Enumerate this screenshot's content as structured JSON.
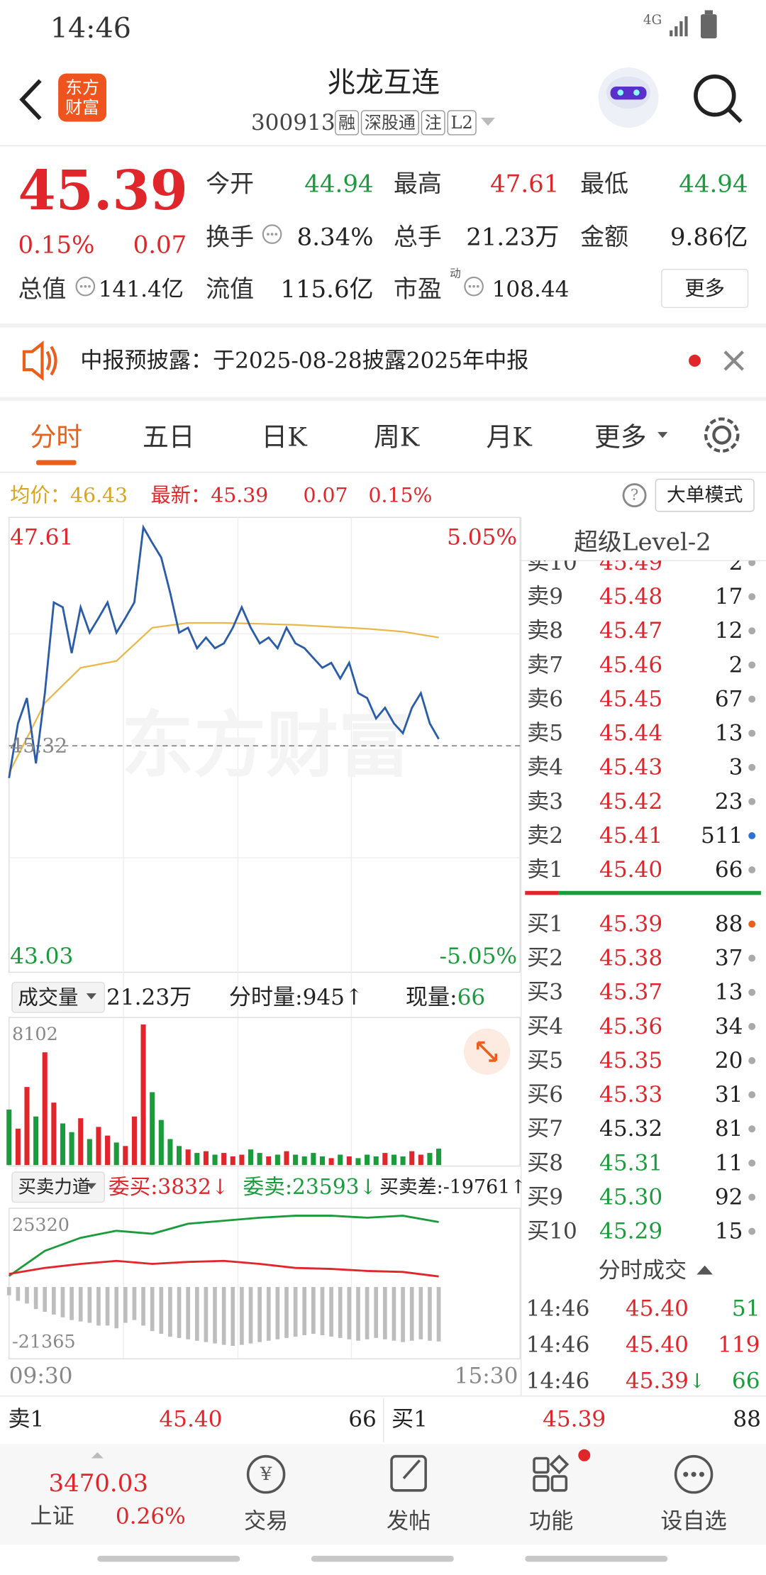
{
  "status_bar": {
    "time": "14:46",
    "network": "4G"
  },
  "header": {
    "logo": [
      "东方",
      "财富"
    ],
    "name": "兆龙互连",
    "code": "300913",
    "tags": [
      "融",
      "深股通",
      "注",
      "L2"
    ]
  },
  "quote": {
    "price": "45.39",
    "change_pct": "0.15%",
    "change": "0.07",
    "pe_note": "动",
    "more": "更多",
    "stats": [
      {
        "label": "今开",
        "value": "44.94",
        "color": "#1a9b3c"
      },
      {
        "label": "最高",
        "value": "47.61",
        "color": "#e0262b"
      },
      {
        "label": "最低",
        "value": "44.94",
        "color": "#1a9b3c"
      },
      {
        "label": "换手",
        "value": "8.34%"
      },
      {
        "label": "总手",
        "value": "21.23万"
      },
      {
        "label": "金额",
        "value": "9.86亿"
      },
      {
        "label": "总值",
        "value": "141.4亿"
      },
      {
        "label": "流值",
        "value": "115.6亿"
      },
      {
        "label": "市盈",
        "value": "108.44"
      }
    ]
  },
  "notice": "中报预披露：于2025-08-28披露2025年中报",
  "tabs": [
    "分时",
    "五日",
    "日K",
    "周K",
    "月K",
    "更多"
  ],
  "summary": {
    "avg": "均价：46.43",
    "latest": "最新：45.39",
    "change": "0.07",
    "pct": "0.15%",
    "mode": "大单模式"
  },
  "intraday": {
    "ylim": [
      43.03,
      47.61
    ],
    "prev_close": 45.32,
    "top_pct": "5.05%",
    "bottom_pct": "-5.05%",
    "watermark": "东方财富",
    "start": "09:30",
    "end": "15:30",
    "price": [
      44.99,
      45.55,
      45.81,
      45.14,
      45.86,
      46.79,
      46.74,
      46.27,
      46.74,
      46.48,
      46.63,
      46.79,
      46.48,
      46.63,
      46.79,
      47.56,
      47.4,
      47.25,
      46.89,
      46.48,
      46.53,
      46.32,
      46.43,
      46.32,
      46.37,
      46.53,
      46.74,
      46.53,
      46.37,
      46.43,
      46.32,
      46.53,
      46.37,
      46.32,
      46.22,
      46.12,
      46.17,
      46.01,
      46.17,
      45.86,
      45.81,
      45.6,
      45.71,
      45.55,
      45.45,
      45.71,
      45.86,
      45.55,
      45.39
    ],
    "avg": [
      45.04,
      45.76,
      46.12,
      46.19,
      46.53,
      46.58,
      46.58,
      46.57,
      46.56,
      46.54,
      46.52,
      46.49,
      46.43
    ]
  },
  "volume": {
    "label": "成交量",
    "total": "21.23万",
    "minute": "分时量:945↑",
    "current_label": "现量:",
    "current": "66",
    "ylim": [
      0,
      8102
    ],
    "values": [
      3200,
      2100,
      4500,
      2800,
      6500,
      3600,
      2400,
      1900,
      2700,
      1500,
      2200,
      1700,
      1300,
      1100,
      2800,
      8102,
      4200,
      2600,
      1500,
      1100,
      900,
      700,
      800,
      600,
      700,
      500,
      600,
      900,
      700,
      500,
      600,
      800,
      600,
      500,
      700,
      500,
      400,
      600,
      500,
      400,
      600,
      500,
      700,
      600,
      500,
      800,
      600,
      700,
      945
    ]
  },
  "force": {
    "label": "买卖力道",
    "buy": "委买:3832↓",
    "sell": "委卖:23593↓",
    "diff": "买卖差:-19761↑",
    "ylim": [
      -21365,
      25320
    ],
    "sell_line": [
      4012,
      13131,
      17872,
      20424,
      19330,
      22977,
      24070,
      25164,
      25893,
      25893,
      25164,
      25893,
      23593
    ],
    "buy_line": [
      4741,
      6929,
      8388,
      9482,
      8388,
      9117,
      9482,
      8388,
      6929,
      6564,
      5835,
      5470,
      3832
    ],
    "diff_bars": [
      -3000,
      -5000,
      -6000,
      -8000,
      -9000,
      -10000,
      -11000,
      -12000,
      -12500,
      -13000,
      -14000,
      -14000,
      -15000,
      -13000,
      -12000,
      -14000,
      -16000,
      -17000,
      -18000,
      -18500,
      -19000,
      -19500,
      -20000,
      -20500,
      -21000,
      -21365,
      -21000,
      -20500,
      -20000,
      -19500,
      -19000,
      -18500,
      -18000,
      -17500,
      -17000,
      -17500,
      -18000,
      -18500,
      -19000,
      -19500,
      -19000,
      -18500,
      -19000,
      -19500,
      -20000,
      -19500,
      -19000,
      -19500,
      -19761
    ]
  },
  "order_book": {
    "title": "超级Level-2",
    "asks": [
      {
        "label": "卖10",
        "price": "45.49",
        "vol": "2"
      },
      {
        "label": "卖9",
        "price": "45.48",
        "vol": "17"
      },
      {
        "label": "卖8",
        "price": "45.47",
        "vol": "12"
      },
      {
        "label": "卖7",
        "price": "45.46",
        "vol": "2"
      },
      {
        "label": "卖6",
        "price": "45.45",
        "vol": "67"
      },
      {
        "label": "卖5",
        "price": "45.44",
        "vol": "13"
      },
      {
        "label": "卖4",
        "price": "45.43",
        "vol": "3"
      },
      {
        "label": "卖3",
        "price": "45.42",
        "vol": "23"
      },
      {
        "label": "卖2",
        "price": "45.41",
        "vol": "511",
        "dot": "#2f6fd0"
      },
      {
        "label": "卖1",
        "price": "45.40",
        "vol": "66"
      }
    ],
    "bids": [
      {
        "label": "买1",
        "price": "45.39",
        "vol": "88",
        "dot": "#e8601c"
      },
      {
        "label": "买2",
        "price": "45.38",
        "vol": "37"
      },
      {
        "label": "买3",
        "price": "45.37",
        "vol": "13"
      },
      {
        "label": "买4",
        "price": "45.36",
        "vol": "34"
      },
      {
        "label": "买5",
        "price": "45.35",
        "vol": "20"
      },
      {
        "label": "买6",
        "price": "45.33",
        "vol": "31"
      },
      {
        "label": "买7",
        "price": "45.32",
        "vol": "81"
      },
      {
        "label": "买8",
        "price": "45.31",
        "vol": "11"
      },
      {
        "label": "买9",
        "price": "45.30",
        "vol": "92"
      },
      {
        "label": "买10",
        "price": "45.29",
        "vol": "15"
      }
    ]
  },
  "trades": {
    "title": "分时成交",
    "rows": [
      {
        "time": "14:46",
        "price": "45.40",
        "vol": "51",
        "color": "#1a9b3c"
      },
      {
        "time": "14:46",
        "price": "45.40",
        "vol": "119",
        "color": "#e0262b"
      },
      {
        "time": "14:46",
        "price": "45.39",
        "arrow": "↓",
        "vol": "66",
        "color": "#1a9b3c"
      }
    ]
  },
  "bottom_bar": {
    "ask_label": "卖1",
    "ask_price": "45.40",
    "ask_vol": "66",
    "bid_label": "买1",
    "bid_price": "45.39",
    "bid_vol": "88"
  },
  "nav": {
    "index_value": "3470.03",
    "index_name": "上证",
    "index_pct": "0.26%",
    "items": [
      "交易",
      "发帖",
      "功能",
      "设自选"
    ]
  }
}
